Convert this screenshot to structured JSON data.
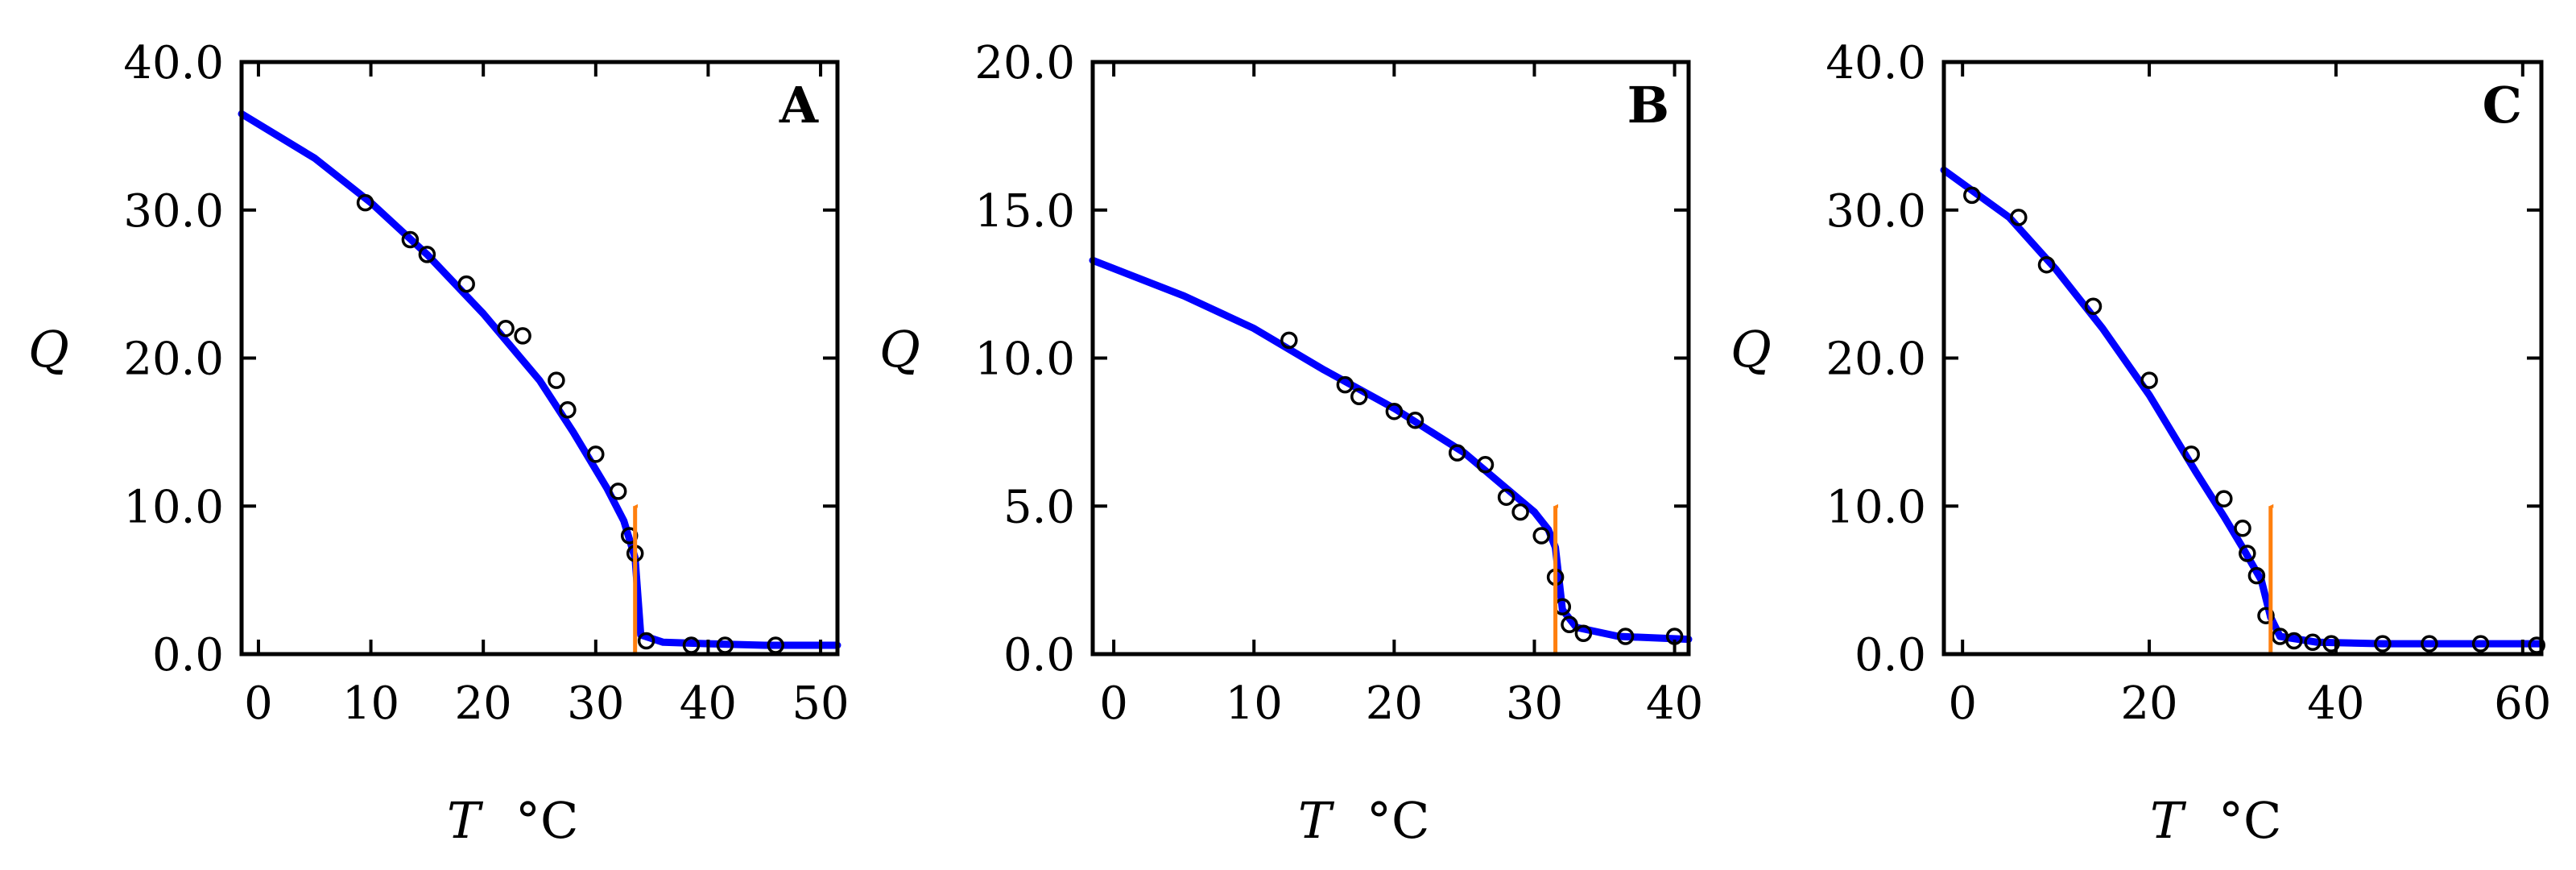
{
  "chart_data": [
    {
      "type": "scatter",
      "panel_label": "A",
      "xlabel_symbol": "T",
      "xlabel_unit": "°C",
      "ylabel": "Q",
      "xlim": [
        -1.5,
        51.5
      ],
      "ylim": [
        0,
        40
      ],
      "xticks": [
        0,
        10,
        20,
        30,
        40,
        50
      ],
      "xtick_labels": [
        "0",
        "10",
        "20",
        "30",
        "40",
        "50"
      ],
      "yticks": [
        0,
        10,
        20,
        30,
        40
      ],
      "ytick_labels": [
        "0.0",
        "10.0",
        "20.0",
        "30.0",
        "40.0"
      ],
      "grid": false,
      "transition_x": 33.5,
      "series": [
        {
          "kind": "markers",
          "x": [
            9.5,
            13.5,
            15,
            18.5,
            22,
            23.5,
            26.5,
            27.5,
            30,
            32,
            33,
            33.5,
            34.5,
            38.5,
            41.5,
            46
          ],
          "y": [
            30.5,
            28,
            27,
            25,
            22,
            21.5,
            18.5,
            16.5,
            13.5,
            11,
            8,
            6.8,
            0.9,
            0.6,
            0.6,
            0.6
          ]
        },
        {
          "kind": "line",
          "x": [
            -1.5,
            5,
            10,
            15,
            20,
            25,
            28,
            31,
            32.5,
            33.5,
            34,
            36,
            40,
            45,
            51.5
          ],
          "y": [
            36.5,
            33.5,
            30.5,
            27,
            23,
            18.5,
            15,
            11.2,
            9,
            6.5,
            1.3,
            0.8,
            0.7,
            0.6,
            0.6
          ]
        }
      ],
      "arrow": {
        "x": 33.5,
        "y_from": 0,
        "y_to": 10
      },
      "colors": {
        "line": "#0000ff",
        "arrow": "#ff7f0e",
        "marker": "#000000"
      }
    },
    {
      "type": "scatter",
      "panel_label": "B",
      "xlabel_symbol": "T",
      "xlabel_unit": "°C",
      "ylabel": "Q",
      "xlim": [
        -1.5,
        41
      ],
      "ylim": [
        0,
        20
      ],
      "xticks": [
        0,
        10,
        20,
        30,
        40
      ],
      "xtick_labels": [
        "0",
        "10",
        "20",
        "30",
        "40"
      ],
      "yticks": [
        0,
        5,
        10,
        15,
        20
      ],
      "ytick_labels": [
        "0.0",
        "5.0",
        "10.0",
        "15.0",
        "20.0"
      ],
      "grid": false,
      "transition_x": 31.5,
      "series": [
        {
          "kind": "markers",
          "x": [
            12.5,
            16.5,
            17.5,
            20,
            21.5,
            24.5,
            26.5,
            28,
            29,
            30.5,
            31.5,
            32,
            32.5,
            33.5,
            36.5,
            40
          ],
          "y": [
            10.6,
            9.1,
            8.7,
            8.2,
            7.9,
            6.8,
            6.4,
            5.3,
            4.8,
            4.0,
            2.6,
            1.6,
            1.0,
            0.7,
            0.6,
            0.6
          ]
        },
        {
          "kind": "line",
          "x": [
            -1.5,
            5,
            10,
            15,
            20,
            25,
            28,
            30,
            31,
            31.5,
            32,
            33,
            36,
            41
          ],
          "y": [
            13.3,
            12.1,
            11.0,
            9.6,
            8.3,
            6.8,
            5.6,
            4.8,
            4.2,
            3.6,
            1.5,
            0.9,
            0.6,
            0.5
          ]
        }
      ],
      "arrow": {
        "x": 31.5,
        "y_from": 0,
        "y_to": 5
      },
      "colors": {
        "line": "#0000ff",
        "arrow": "#ff7f0e",
        "marker": "#000000"
      }
    },
    {
      "type": "scatter",
      "panel_label": "C",
      "xlabel_symbol": "T",
      "xlabel_unit": "°C",
      "ylabel": "Q",
      "xlim": [
        -2,
        62
      ],
      "ylim": [
        0,
        40
      ],
      "xticks": [
        0,
        20,
        40,
        60
      ],
      "xtick_labels": [
        "0",
        "20",
        "40",
        "60"
      ],
      "yticks": [
        0,
        10,
        20,
        30,
        40
      ],
      "ytick_labels": [
        "0.0",
        "10.0",
        "20.0",
        "30.0",
        "40.0"
      ],
      "grid": false,
      "transition_x": 33,
      "series": [
        {
          "kind": "markers",
          "x": [
            1,
            6,
            9,
            14,
            20,
            24.5,
            28,
            30,
            30.5,
            31.5,
            32.5,
            34,
            35.5,
            37.5,
            39.5,
            45,
            50,
            55.5,
            61.5
          ],
          "y": [
            31,
            29.5,
            26.3,
            23.5,
            18.5,
            13.5,
            10.5,
            8.5,
            6.8,
            5.3,
            2.6,
            1.2,
            0.9,
            0.8,
            0.7,
            0.7,
            0.7,
            0.7,
            0.6
          ]
        },
        {
          "kind": "line",
          "x": [
            -2,
            5,
            10,
            15,
            20,
            25,
            28,
            30,
            32,
            33,
            34,
            38,
            45,
            55,
            62
          ],
          "y": [
            32.7,
            29.5,
            26,
            22,
            17.5,
            12.3,
            9.3,
            7.2,
            5.0,
            2.5,
            1.2,
            0.8,
            0.7,
            0.7,
            0.7
          ]
        }
      ],
      "arrow": {
        "x": 33,
        "y_from": 0,
        "y_to": 10
      },
      "colors": {
        "line": "#0000ff",
        "arrow": "#ff7f0e",
        "marker": "#000000"
      }
    }
  ]
}
